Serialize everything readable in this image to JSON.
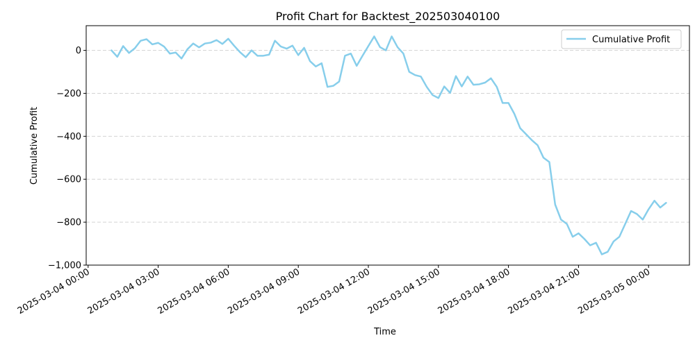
{
  "chart_data": {
    "type": "line",
    "title": "Profit Chart for Backtest_202503040100",
    "xlabel": "Time",
    "ylabel": "Cumulative Profit",
    "x_type": "datetime",
    "xlim": [
      "2025-03-03 23:55",
      "2025-03-05 01:45"
    ],
    "ylim": [
      -1000,
      115
    ],
    "yticks": [
      -1000,
      -800,
      -600,
      -400,
      -200,
      0
    ],
    "ytick_labels": [
      "−1,000",
      "−800",
      "−600",
      "−400",
      "−200",
      "0"
    ],
    "xticks": [
      "2025-03-04 00:00",
      "2025-03-04 03:00",
      "2025-03-04 06:00",
      "2025-03-04 09:00",
      "2025-03-04 12:00",
      "2025-03-04 15:00",
      "2025-03-04 18:00",
      "2025-03-04 21:00",
      "2025-03-05 00:00"
    ],
    "xtick_labels": [
      "2025-03-04 00:00",
      "2025-03-04 03:00",
      "2025-03-04 06:00",
      "2025-03-04 09:00",
      "2025-03-04 12:00",
      "2025-03-04 15:00",
      "2025-03-04 18:00",
      "2025-03-04 21:00",
      "2025-03-05 00:00"
    ],
    "grid": "y-dashed",
    "legend_position": "top-right",
    "colors": {
      "line": "#87ceeb",
      "grid": "#d3d3d3",
      "axis": "#000000"
    },
    "series": [
      {
        "name": "Cumulative Profit",
        "x": [
          "2025-03-04 01:00",
          "2025-03-04 01:15",
          "2025-03-04 01:30",
          "2025-03-04 01:45",
          "2025-03-04 02:00",
          "2025-03-04 02:15",
          "2025-03-04 02:30",
          "2025-03-04 02:45",
          "2025-03-04 03:00",
          "2025-03-04 03:15",
          "2025-03-04 03:30",
          "2025-03-04 03:45",
          "2025-03-04 04:00",
          "2025-03-04 04:15",
          "2025-03-04 04:30",
          "2025-03-04 04:45",
          "2025-03-04 05:00",
          "2025-03-04 05:15",
          "2025-03-04 05:30",
          "2025-03-04 05:45",
          "2025-03-04 06:00",
          "2025-03-04 06:15",
          "2025-03-04 06:30",
          "2025-03-04 06:45",
          "2025-03-04 07:00",
          "2025-03-04 07:15",
          "2025-03-04 07:30",
          "2025-03-04 07:45",
          "2025-03-04 08:00",
          "2025-03-04 08:15",
          "2025-03-04 08:30",
          "2025-03-04 08:45",
          "2025-03-04 09:00",
          "2025-03-04 09:15",
          "2025-03-04 09:30",
          "2025-03-04 09:45",
          "2025-03-04 10:00",
          "2025-03-04 10:15",
          "2025-03-04 10:30",
          "2025-03-04 10:45",
          "2025-03-04 11:00",
          "2025-03-04 11:15",
          "2025-03-04 11:30",
          "2025-03-04 11:45",
          "2025-03-04 12:00",
          "2025-03-04 12:15",
          "2025-03-04 12:30",
          "2025-03-04 12:45",
          "2025-03-04 13:00",
          "2025-03-04 13:15",
          "2025-03-04 13:30",
          "2025-03-04 13:45",
          "2025-03-04 14:00",
          "2025-03-04 14:15",
          "2025-03-04 14:30",
          "2025-03-04 14:45",
          "2025-03-04 15:00",
          "2025-03-04 15:15",
          "2025-03-04 15:30",
          "2025-03-04 15:45",
          "2025-03-04 16:00",
          "2025-03-04 16:15",
          "2025-03-04 16:30",
          "2025-03-04 16:45",
          "2025-03-04 17:00",
          "2025-03-04 17:15",
          "2025-03-04 17:30",
          "2025-03-04 17:45",
          "2025-03-04 18:00",
          "2025-03-04 18:15",
          "2025-03-04 18:30",
          "2025-03-04 18:45",
          "2025-03-04 19:00",
          "2025-03-04 19:15",
          "2025-03-04 19:30",
          "2025-03-04 19:45",
          "2025-03-04 20:00",
          "2025-03-04 20:15",
          "2025-03-04 20:30",
          "2025-03-04 20:45",
          "2025-03-04 21:00",
          "2025-03-04 21:15",
          "2025-03-04 21:30",
          "2025-03-04 21:45",
          "2025-03-04 22:00",
          "2025-03-04 22:15",
          "2025-03-04 22:30",
          "2025-03-04 22:45",
          "2025-03-04 23:00",
          "2025-03-04 23:15",
          "2025-03-04 23:30",
          "2025-03-04 23:45",
          "2025-03-05 00:00",
          "2025-03-05 00:15",
          "2025-03-05 00:30",
          "2025-03-05 00:45"
        ],
        "y": [
          0,
          -30,
          20,
          -12,
          10,
          45,
          52,
          28,
          35,
          18,
          -15,
          -10,
          -38,
          5,
          32,
          14,
          32,
          36,
          48,
          30,
          54,
          22,
          -8,
          -32,
          0,
          -25,
          -25,
          -20,
          45,
          18,
          8,
          22,
          -22,
          12,
          -50,
          -75,
          -60,
          -170,
          -165,
          -145,
          -25,
          -15,
          -72,
          -25,
          20,
          65,
          15,
          0,
          65,
          15,
          -15,
          -100,
          -115,
          -122,
          -170,
          -208,
          -222,
          -168,
          -198,
          -120,
          -168,
          -122,
          -160,
          -158,
          -150,
          -130,
          -170,
          -245,
          -245,
          -295,
          -362,
          -390,
          -418,
          -442,
          -500,
          -520,
          -718,
          -788,
          -808,
          -868,
          -852,
          -878,
          -908,
          -896,
          -950,
          -938,
          -890,
          -868,
          -808,
          -748,
          -762,
          -788,
          -740,
          -700,
          -732,
          -710
        ]
      }
    ]
  }
}
